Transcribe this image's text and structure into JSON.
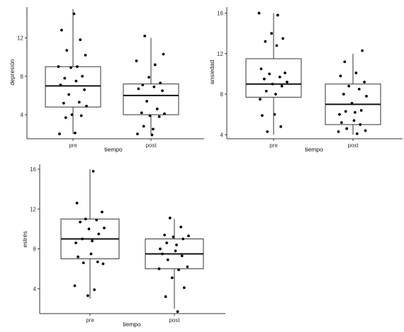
{
  "chart_data": [
    {
      "type": "boxplot",
      "xlabel": "tiempo",
      "ylabel": "depresión",
      "ylim": [
        1.5,
        15.2
      ],
      "yticks": [
        4,
        8,
        12
      ],
      "categories": [
        "pre",
        "post"
      ],
      "boxes": [
        {
          "category": "pre",
          "min": 2.0,
          "q1": 4.8,
          "median": 7.0,
          "q3": 9.0,
          "max": 15.0
        },
        {
          "category": "post",
          "min": 2.0,
          "q1": 4.0,
          "median": 6.0,
          "q3": 7.2,
          "max": 12.0
        }
      ],
      "points": [
        {
          "category": "pre",
          "values": [
            14.5,
            12.8,
            11.8,
            10.7,
            10.2,
            9.0,
            9.0,
            8.9,
            8.0,
            7.8,
            7.5,
            7.1,
            6.6,
            6.1,
            5.3,
            5.2,
            4.9,
            4.0,
            3.9,
            3.7,
            2.1,
            2.0
          ]
        },
        {
          "category": "post",
          "values": [
            12.2,
            10.3,
            9.6,
            9.2,
            7.9,
            7.3,
            7.1,
            6.9,
            6.7,
            6.5,
            5.4,
            4.6,
            4.2,
            4.1,
            3.9,
            3.8,
            2.8,
            2.5,
            2.0,
            1.9
          ]
        }
      ],
      "grid": false
    },
    {
      "type": "boxplot",
      "xlabel": "tiempo",
      "ylabel": "ansiedad",
      "ylim": [
        3.6,
        16.6
      ],
      "yticks": [
        4,
        8,
        12,
        16
      ],
      "categories": [
        "pre",
        "post"
      ],
      "boxes": [
        {
          "category": "pre",
          "min": 4.0,
          "q1": 7.7,
          "median": 9.0,
          "q3": 11.5,
          "max": 16.0
        },
        {
          "category": "post",
          "min": 4.0,
          "q1": 5.0,
          "median": 7.0,
          "q3": 9.0,
          "max": 12.0
        }
      ],
      "points": [
        {
          "category": "pre",
          "values": [
            16.0,
            15.8,
            14.0,
            13.5,
            13.2,
            12.8,
            10.5,
            10.1,
            10.0,
            9.7,
            9.5,
            9.2,
            9.0,
            8.8,
            8.3,
            8.0,
            7.5,
            6.0,
            5.9,
            4.8,
            4.3
          ]
        },
        {
          "category": "post",
          "values": [
            12.3,
            11.2,
            10.1,
            9.8,
            9.2,
            8.8,
            8.5,
            8.0,
            7.8,
            7.1,
            6.4,
            6.3,
            6.2,
            6.0,
            5.4,
            5.2,
            5.0,
            4.6,
            4.4,
            4.3,
            4.1
          ]
        }
      ],
      "grid": false
    },
    {
      "type": "boxplot",
      "xlabel": "tiempo",
      "ylabel": "estrés",
      "ylim": [
        1.5,
        16.5
      ],
      "yticks": [
        4,
        8,
        12,
        16
      ],
      "categories": [
        "pre",
        "post"
      ],
      "boxes": [
        {
          "category": "pre",
          "min": 3.0,
          "q1": 7.0,
          "median": 9.0,
          "q3": 11.0,
          "max": 16.0
        },
        {
          "category": "post",
          "min": 2.0,
          "q1": 6.0,
          "median": 7.5,
          "q3": 9.0,
          "max": 11.0
        }
      ],
      "points": [
        {
          "category": "pre",
          "values": [
            15.8,
            12.6,
            11.7,
            11.0,
            10.9,
            10.7,
            10.1,
            10.0,
            9.5,
            9.0,
            8.8,
            8.6,
            7.5,
            7.2,
            6.7,
            6.6,
            6.5,
            4.3,
            3.9,
            3.3
          ]
        },
        {
          "category": "post",
          "values": [
            11.1,
            10.2,
            9.4,
            9.3,
            9.2,
            9.0,
            8.6,
            8.4,
            8.0,
            7.8,
            7.5,
            7.3,
            6.9,
            6.2,
            6.0,
            5.9,
            5.1,
            4.1,
            3.2,
            1.7
          ]
        }
      ],
      "grid": false
    }
  ]
}
